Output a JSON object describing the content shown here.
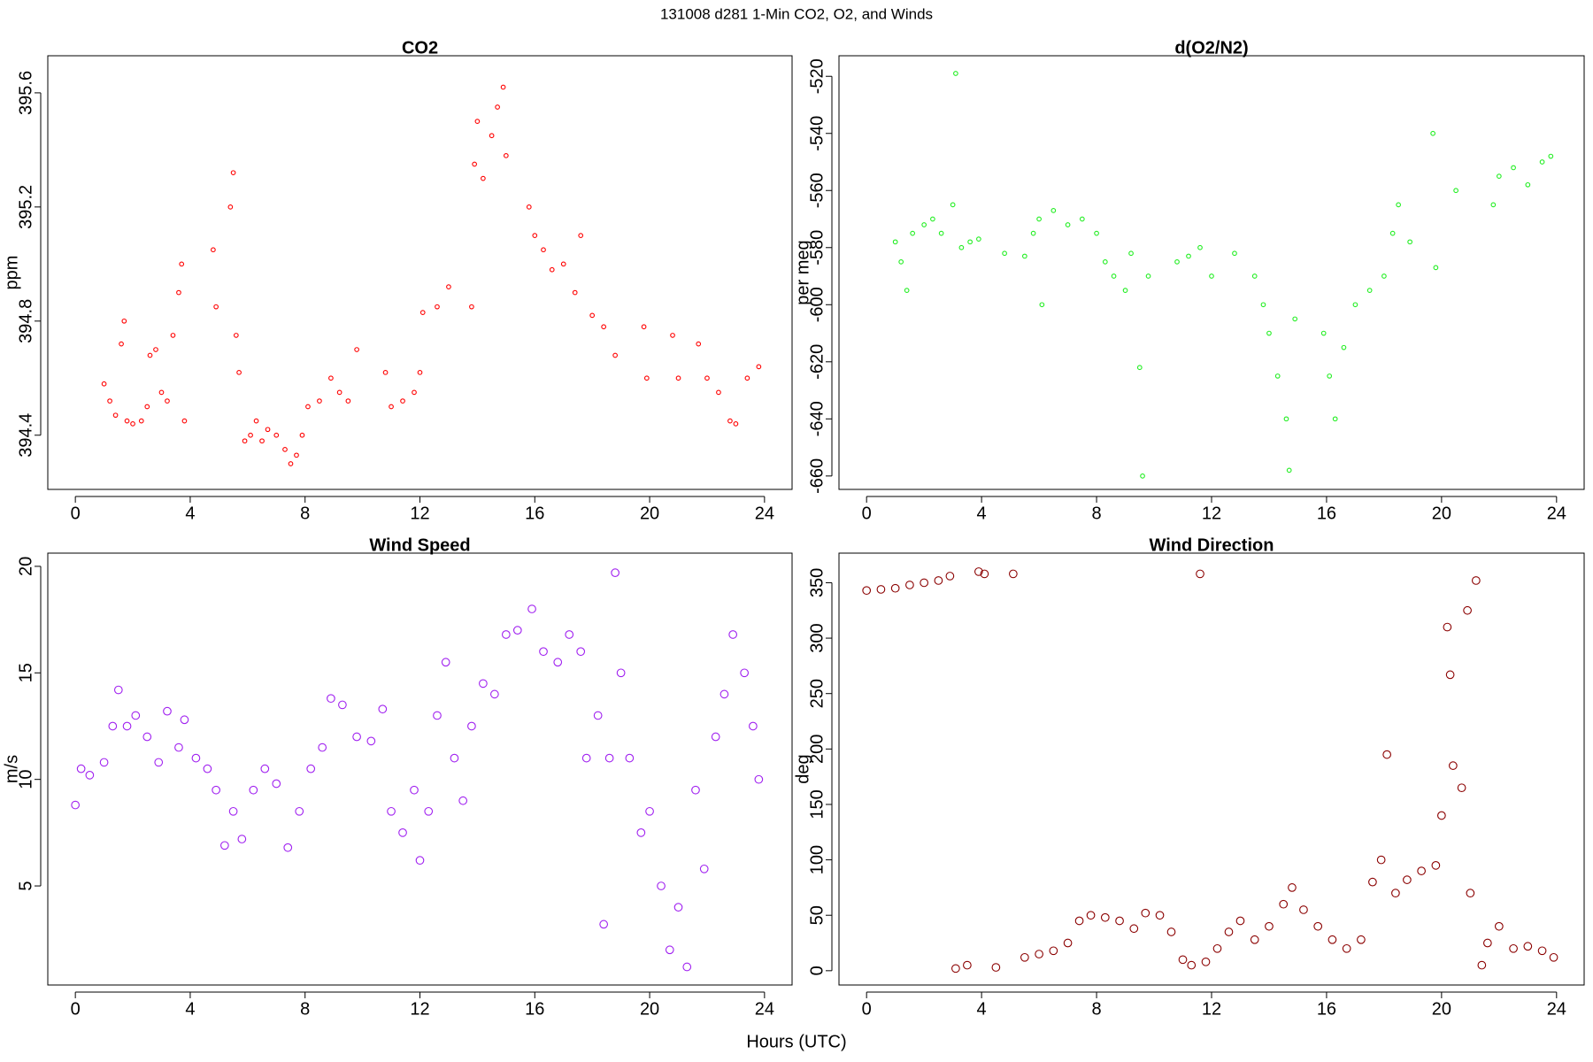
{
  "title": "131008   d281   1-Min CO2, O2, and Winds",
  "xlabel": "Hours (UTC)",
  "chart_data": [
    {
      "type": "scatter",
      "title": "CO2",
      "ylabel": "ppm",
      "color": "#ff0000",
      "xlim": [
        -0.96,
        24.96
      ],
      "xticks": [
        0,
        4,
        8,
        12,
        16,
        20,
        24
      ],
      "ylim": [
        394.21,
        395.73
      ],
      "yticks": [
        394.4,
        394.8,
        395.2,
        395.6
      ],
      "x": [
        1.0,
        1.2,
        1.4,
        1.6,
        1.7,
        1.8,
        2.0,
        2.3,
        2.5,
        2.6,
        2.8,
        3.0,
        3.2,
        3.4,
        3.6,
        3.7,
        3.8,
        4.8,
        4.9,
        5.4,
        5.5,
        5.6,
        5.7,
        5.9,
        6.1,
        6.3,
        6.5,
        6.7,
        7.0,
        7.3,
        7.5,
        7.7,
        7.9,
        8.1,
        8.5,
        8.9,
        9.2,
        9.5,
        9.8,
        10.8,
        11.0,
        11.4,
        11.8,
        12.0,
        12.1,
        12.6,
        13.0,
        13.8,
        13.9,
        14.0,
        14.2,
        14.5,
        14.7,
        14.9,
        15.0,
        15.8,
        16.0,
        16.3,
        16.6,
        17.0,
        17.4,
        17.6,
        18.0,
        18.4,
        18.8,
        19.8,
        19.9,
        20.8,
        21.0,
        21.7,
        22.0,
        22.4,
        22.8,
        23.0,
        23.4,
        23.8
      ],
      "values": [
        394.58,
        394.52,
        394.47,
        394.72,
        394.8,
        394.45,
        394.44,
        394.45,
        394.5,
        394.68,
        394.7,
        394.55,
        394.52,
        394.75,
        394.9,
        395.0,
        394.45,
        395.05,
        394.85,
        395.2,
        395.32,
        394.75,
        394.62,
        394.38,
        394.4,
        394.45,
        394.38,
        394.42,
        394.4,
        394.35,
        394.3,
        394.33,
        394.4,
        394.5,
        394.52,
        394.6,
        394.55,
        394.52,
        394.7,
        394.62,
        394.5,
        394.52,
        394.55,
        394.62,
        394.83,
        394.85,
        394.92,
        394.85,
        395.35,
        395.5,
        395.3,
        395.45,
        395.55,
        395.62,
        395.38,
        395.2,
        395.1,
        395.05,
        394.98,
        395.0,
        394.9,
        395.1,
        394.82,
        394.78,
        394.68,
        394.78,
        394.6,
        394.75,
        394.6,
        394.72,
        394.6,
        394.55,
        394.45,
        394.44,
        394.6,
        394.64
      ]
    },
    {
      "type": "scatter",
      "title": "d(O2/N2)",
      "ylabel": "per meg",
      "color": "#22ee22",
      "xlim": [
        -0.96,
        24.96
      ],
      "xticks": [
        0,
        4,
        8,
        12,
        16,
        20,
        24
      ],
      "ylim": [
        -664.7,
        -512.8
      ],
      "yticks": [
        -660,
        -640,
        -620,
        -600,
        -580,
        -560,
        -540,
        -520
      ],
      "x": [
        1.0,
        1.2,
        1.4,
        1.6,
        2.0,
        2.3,
        2.6,
        3.0,
        3.1,
        3.3,
        3.6,
        3.9,
        4.8,
        5.5,
        5.8,
        6.0,
        6.1,
        6.5,
        7.0,
        7.5,
        8.0,
        8.3,
        8.6,
        9.0,
        9.2,
        9.5,
        9.6,
        9.8,
        10.8,
        11.2,
        11.6,
        12.0,
        12.8,
        13.5,
        13.8,
        14.0,
        14.3,
        14.6,
        14.7,
        14.9,
        15.9,
        16.1,
        16.3,
        16.6,
        17.0,
        17.5,
        18.0,
        18.3,
        18.5,
        18.9,
        19.7,
        19.8,
        20.5,
        21.8,
        22.0,
        22.5,
        23.0,
        23.5,
        23.8
      ],
      "values": [
        -578,
        -585,
        -595,
        -575,
        -572,
        -570,
        -575,
        -565,
        -519,
        -580,
        -578,
        -577,
        -582,
        -583,
        -575,
        -570,
        -600,
        -567,
        -572,
        -570,
        -575,
        -585,
        -590,
        -595,
        -582,
        -622,
        -660,
        -590,
        -585,
        -583,
        -580,
        -590,
        -582,
        -590,
        -600,
        -610,
        -625,
        -640,
        -658,
        -605,
        -610,
        -625,
        -640,
        -615,
        -600,
        -595,
        -590,
        -575,
        -565,
        -578,
        -540,
        -587,
        -560,
        -565,
        -555,
        -552,
        -558,
        -550,
        -548
      ]
    },
    {
      "type": "scatter",
      "title": "Wind Speed",
      "ylabel": "m/s",
      "color": "#a020f0",
      "xlim": [
        -0.96,
        24.96
      ],
      "xticks": [
        0,
        4,
        8,
        12,
        16,
        20,
        24
      ],
      "ylim": [
        0.35,
        20.62
      ],
      "yticks": [
        5,
        10,
        15,
        20
      ],
      "x": [
        0,
        0.2,
        0.5,
        1.0,
        1.3,
        1.5,
        1.8,
        2.1,
        2.5,
        2.9,
        3.2,
        3.6,
        3.8,
        4.2,
        4.6,
        4.9,
        5.2,
        5.5,
        5.8,
        6.2,
        6.6,
        7.0,
        7.4,
        7.8,
        8.2,
        8.6,
        8.9,
        9.3,
        9.8,
        10.3,
        10.7,
        11.0,
        11.4,
        11.8,
        12.0,
        12.3,
        12.6,
        12.9,
        13.2,
        13.5,
        13.8,
        14.2,
        14.6,
        15.0,
        15.4,
        15.9,
        16.3,
        16.8,
        17.2,
        17.6,
        17.8,
        18.2,
        18.4,
        18.6,
        18.8,
        19.0,
        19.3,
        19.7,
        20.0,
        20.4,
        20.7,
        21.0,
        21.3,
        21.6,
        21.9,
        22.3,
        22.6,
        22.9,
        23.3,
        23.6,
        23.8
      ],
      "values": [
        8.8,
        10.5,
        10.2,
        10.8,
        12.5,
        14.2,
        12.5,
        13.0,
        12.0,
        10.8,
        13.2,
        11.5,
        12.8,
        11.0,
        10.5,
        9.5,
        6.9,
        8.5,
        7.2,
        9.5,
        10.5,
        9.8,
        6.8,
        8.5,
        10.5,
        11.5,
        13.8,
        13.5,
        12.0,
        11.8,
        13.3,
        8.5,
        7.5,
        9.5,
        6.2,
        8.5,
        13.0,
        15.5,
        11.0,
        9.0,
        12.5,
        14.5,
        14.0,
        16.8,
        17.0,
        18.0,
        16.0,
        15.5,
        16.8,
        16.0,
        11.0,
        13.0,
        3.2,
        11.0,
        19.7,
        15.0,
        11.0,
        7.5,
        8.5,
        5.0,
        2.0,
        4.0,
        1.2,
        9.5,
        5.8,
        12.0,
        14.0,
        16.8,
        15.0,
        12.5,
        10.0
      ]
    },
    {
      "type": "scatter",
      "title": "Wind Direction",
      "ylabel": "deg",
      "color": "#8b0000",
      "xlim": [
        -0.96,
        24.96
      ],
      "xticks": [
        0,
        4,
        8,
        12,
        16,
        20,
        24
      ],
      "ylim": [
        -12.9,
        376.7
      ],
      "yticks": [
        0,
        50,
        100,
        150,
        200,
        250,
        300,
        350
      ],
      "x": [
        0,
        0.5,
        1.0,
        1.5,
        2.0,
        2.5,
        2.9,
        3.1,
        3.5,
        3.9,
        4.1,
        4.5,
        5.1,
        5.5,
        6.0,
        6.5,
        7.0,
        7.4,
        7.8,
        8.3,
        8.8,
        9.3,
        9.7,
        10.2,
        10.6,
        11.0,
        11.3,
        11.6,
        11.8,
        12.2,
        12.6,
        13.0,
        13.5,
        14.0,
        14.5,
        14.8,
        15.2,
        15.7,
        16.2,
        16.7,
        17.2,
        17.6,
        17.9,
        18.1,
        18.4,
        18.8,
        19.3,
        19.8,
        20.0,
        20.2,
        20.3,
        20.4,
        20.7,
        20.9,
        21.0,
        21.2,
        21.4,
        21.6,
        22.0,
        22.5,
        23.0,
        23.5,
        23.9
      ],
      "values": [
        343,
        344,
        345,
        348,
        350,
        352,
        356,
        2,
        5,
        360,
        358,
        3,
        358,
        12,
        15,
        18,
        25,
        45,
        50,
        48,
        45,
        38,
        52,
        50,
        35,
        10,
        5,
        358,
        8,
        20,
        35,
        45,
        28,
        40,
        60,
        75,
        55,
        40,
        28,
        20,
        28,
        80,
        100,
        195,
        70,
        82,
        90,
        95,
        140,
        310,
        267,
        185,
        165,
        325,
        70,
        352,
        5,
        25,
        40,
        20,
        22,
        18,
        12
      ]
    }
  ]
}
